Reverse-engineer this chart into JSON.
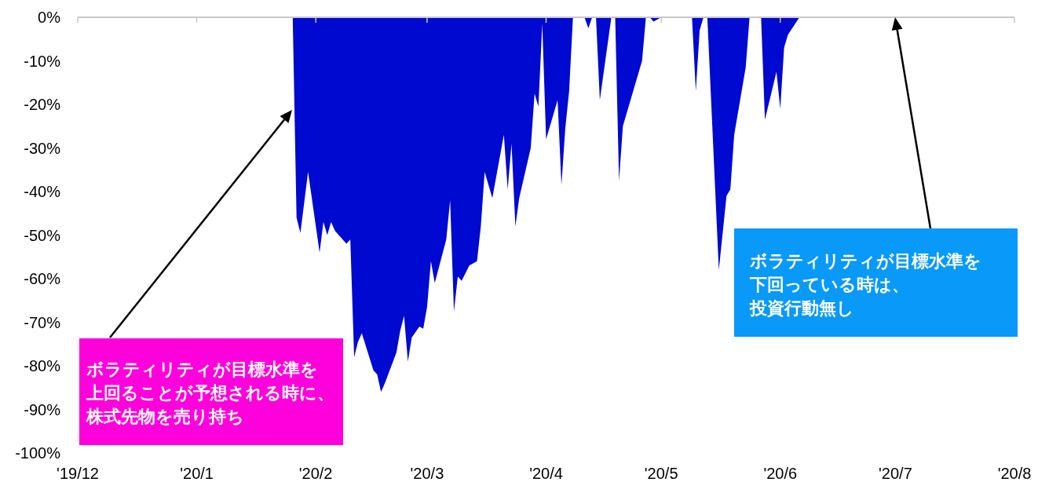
{
  "chart_data": {
    "type": "area",
    "x": [
      "2019-12-01",
      "2020-01-26",
      "2020-01-27",
      "2020-01-28",
      "2020-01-30",
      "2020-02-02",
      "2020-02-03",
      "2020-02-04",
      "2020-02-05",
      "2020-02-06",
      "2020-02-09",
      "2020-02-10",
      "2020-02-11",
      "2020-02-12",
      "2020-02-13",
      "2020-02-16",
      "2020-02-17",
      "2020-02-18",
      "2020-02-19",
      "2020-02-22",
      "2020-02-23",
      "2020-02-24",
      "2020-02-25",
      "2020-02-26",
      "2020-02-28",
      "2020-02-29",
      "2020-03-01",
      "2020-03-02",
      "2020-03-03",
      "2020-03-06",
      "2020-03-07",
      "2020-03-08",
      "2020-03-09",
      "2020-03-10",
      "2020-03-12",
      "2020-03-14",
      "2020-03-15",
      "2020-03-16",
      "2020-03-18",
      "2020-03-21",
      "2020-03-22",
      "2020-03-23",
      "2020-03-24",
      "2020-03-25",
      "2020-03-28",
      "2020-03-29",
      "2020-03-30",
      "2020-03-31",
      "2020-04-01",
      "2020-04-04",
      "2020-04-05",
      "2020-04-06",
      "2020-04-07",
      "2020-04-08",
      "2020-04-11",
      "2020-04-12",
      "2020-04-13",
      "2020-04-14",
      "2020-04-15",
      "2020-04-18",
      "2020-04-19",
      "2020-04-20",
      "2020-04-21",
      "2020-04-26",
      "2020-04-27",
      "2020-04-28",
      "2020-04-29",
      "2020-04-30",
      "2020-05-01",
      "2020-05-09",
      "2020-05-10",
      "2020-05-11",
      "2020-05-12",
      "2020-05-13",
      "2020-05-16",
      "2020-05-18",
      "2020-05-19",
      "2020-05-20",
      "2020-05-23",
      "2020-05-24",
      "2020-05-27",
      "2020-05-28",
      "2020-05-31",
      "2020-06-01",
      "2020-06-02",
      "2020-06-03",
      "2020-06-06",
      "2020-08-01"
    ],
    "values": [
      0,
      0,
      -46,
      -49.5,
      -35.5,
      -54,
      -47,
      -50,
      -47,
      -49,
      -52,
      -51,
      -78,
      -74.5,
      -72.5,
      -81,
      -82,
      -86,
      -84,
      -77,
      -72,
      -68.5,
      -79,
      -73.5,
      -71,
      -71.5,
      -66.5,
      -56,
      -61,
      -51,
      -42,
      -67.5,
      -59.5,
      -60.5,
      -57,
      -56,
      -48,
      -35.5,
      -41.5,
      -27,
      -39.5,
      -29,
      -48,
      -41.5,
      -30,
      -17.5,
      -20.5,
      -1.5,
      -28,
      -19,
      -38.5,
      -25.5,
      -17,
      0,
      0,
      -2.5,
      0,
      0,
      -19,
      0,
      0,
      -37.5,
      -25,
      -10,
      0,
      0,
      -1,
      -0.5,
      0,
      0,
      -17,
      -3,
      0,
      0,
      -58,
      -41,
      -39.5,
      -27,
      -11.5,
      0,
      0,
      -23.5,
      -12.5,
      -21,
      -7,
      -4,
      0,
      0
    ],
    "color": "#0009cf",
    "xlim": [
      "2019-12-01",
      "2020-08-01"
    ],
    "xticks": [
      {
        "value": "2019-12-01",
        "label": "'19/12"
      },
      {
        "value": "2020-01-01",
        "label": "'20/1"
      },
      {
        "value": "2020-02-01",
        "label": "'20/2"
      },
      {
        "value": "2020-03-01",
        "label": "'20/3"
      },
      {
        "value": "2020-04-01",
        "label": "'20/4"
      },
      {
        "value": "2020-05-01",
        "label": "'20/5"
      },
      {
        "value": "2020-06-01",
        "label": "'20/6"
      },
      {
        "value": "2020-07-01",
        "label": "'20/7"
      },
      {
        "value": "2020-08-01",
        "label": "'20/8"
      }
    ],
    "ylim": [
      -100,
      0
    ],
    "yticks": [
      {
        "value": 0,
        "label": "0%"
      },
      {
        "value": -10,
        "label": "-10%"
      },
      {
        "value": -20,
        "label": "-20%"
      },
      {
        "value": -30,
        "label": "-30%"
      },
      {
        "value": -40,
        "label": "-40%"
      },
      {
        "value": -50,
        "label": "-50%"
      },
      {
        "value": -60,
        "label": "-60%"
      },
      {
        "value": -70,
        "label": "-70%"
      },
      {
        "value": -80,
        "label": "-80%"
      },
      {
        "value": -90,
        "label": "-90%"
      },
      {
        "value": -100,
        "label": "-100%"
      }
    ],
    "annotations": [
      "ボラティリティが目標水準を",
      "上回ることが予想される時に、",
      "株式先物を売り持ち",
      "ボラティリティが目標水準を",
      "下回っている時は、",
      "投資行動無し"
    ]
  }
}
